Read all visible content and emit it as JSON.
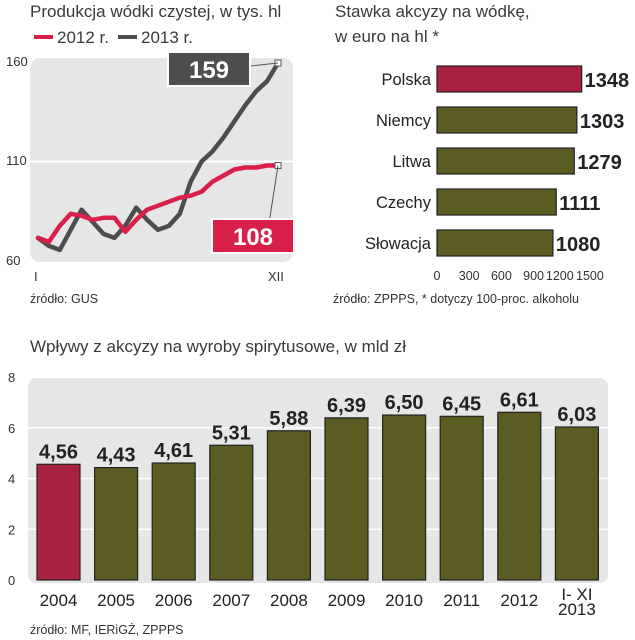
{
  "colors": {
    "red": "#a8213f",
    "red_line": "#d8204a",
    "dark": "#4d4d4d",
    "olive": "#5b5c22",
    "panel": "#e6e6e6"
  },
  "chart_data": [
    {
      "type": "line",
      "title": "Produkcja wódki czystej,  w tys. hl",
      "source": "źródło: GUS",
      "x_labels": [
        "I",
        "XII"
      ],
      "x": [
        1,
        2,
        3,
        4,
        5,
        6,
        7,
        8,
        9,
        10,
        11,
        12,
        13,
        14,
        15,
        16,
        17,
        18,
        19,
        20,
        21,
        22,
        23
      ],
      "ylim": [
        60,
        160
      ],
      "yticks": [
        "160",
        "110",
        "60"
      ],
      "series": [
        {
          "name": "2012 r.",
          "color": "#d8204a",
          "values": [
            72,
            70,
            78,
            84,
            83,
            81,
            82,
            82,
            75,
            81,
            86,
            88,
            90,
            92,
            93,
            95,
            100,
            103,
            106,
            107,
            107,
            108,
            108
          ]
        },
        {
          "name": "2013 r.",
          "color": "#4d4d4d",
          "values": [
            72,
            68,
            66,
            76,
            86,
            80,
            74,
            72,
            78,
            87,
            81,
            76,
            78,
            84,
            100,
            110,
            115,
            122,
            130,
            138,
            145,
            150,
            159
          ]
        }
      ],
      "end_labels": {
        "2012 r.": "108",
        "2013 r.": "159"
      }
    },
    {
      "type": "bar",
      "orientation": "horizontal",
      "title_lines": [
        "Stawka akcyzy na wódkę,",
        "w euro na hl *"
      ],
      "source": "źródło: ZPPPS, * dotyczy 100-proc. alkoholu",
      "categories": [
        "Polska",
        "Niemcy",
        "Litwa",
        "Czechy",
        "Słowacja"
      ],
      "values": [
        1348,
        1303,
        1279,
        1111,
        1080
      ],
      "value_labels": [
        "1348",
        "1303",
        "1279",
        "1111",
        "1080"
      ],
      "xlim": [
        0,
        1500
      ],
      "xticks": [
        "0",
        "300",
        "600",
        "900",
        "1200",
        "1500"
      ],
      "highlight_index": 0
    },
    {
      "type": "bar",
      "title": "Wpływy z akcyzy na wyroby spirytusowe, w mld zł",
      "source": "źródło: MF, IERiGŻ, ZPPPS",
      "categories": [
        "2004",
        "2005",
        "2006",
        "2007",
        "2008",
        "2009",
        "2010",
        "2011",
        "2012",
        "I- XI 2013"
      ],
      "category_lines": [
        [
          "2004"
        ],
        [
          "2005"
        ],
        [
          "2006"
        ],
        [
          "2007"
        ],
        [
          "2008"
        ],
        [
          "2009"
        ],
        [
          "2010"
        ],
        [
          "2011"
        ],
        [
          "2012"
        ],
        [
          "I- XI",
          "2013"
        ]
      ],
      "values": [
        4.56,
        4.43,
        4.61,
        5.31,
        5.88,
        6.39,
        6.5,
        6.45,
        6.61,
        6.03
      ],
      "value_labels": [
        "4,56",
        "4,43",
        "4,61",
        "5,31",
        "5,88",
        "6,39",
        "6,50",
        "6,45",
        "6,61",
        "6,03"
      ],
      "ylim": [
        0,
        8
      ],
      "yticks": [
        "0",
        "2",
        "4",
        "6",
        "8"
      ],
      "highlight_index": 0
    }
  ]
}
